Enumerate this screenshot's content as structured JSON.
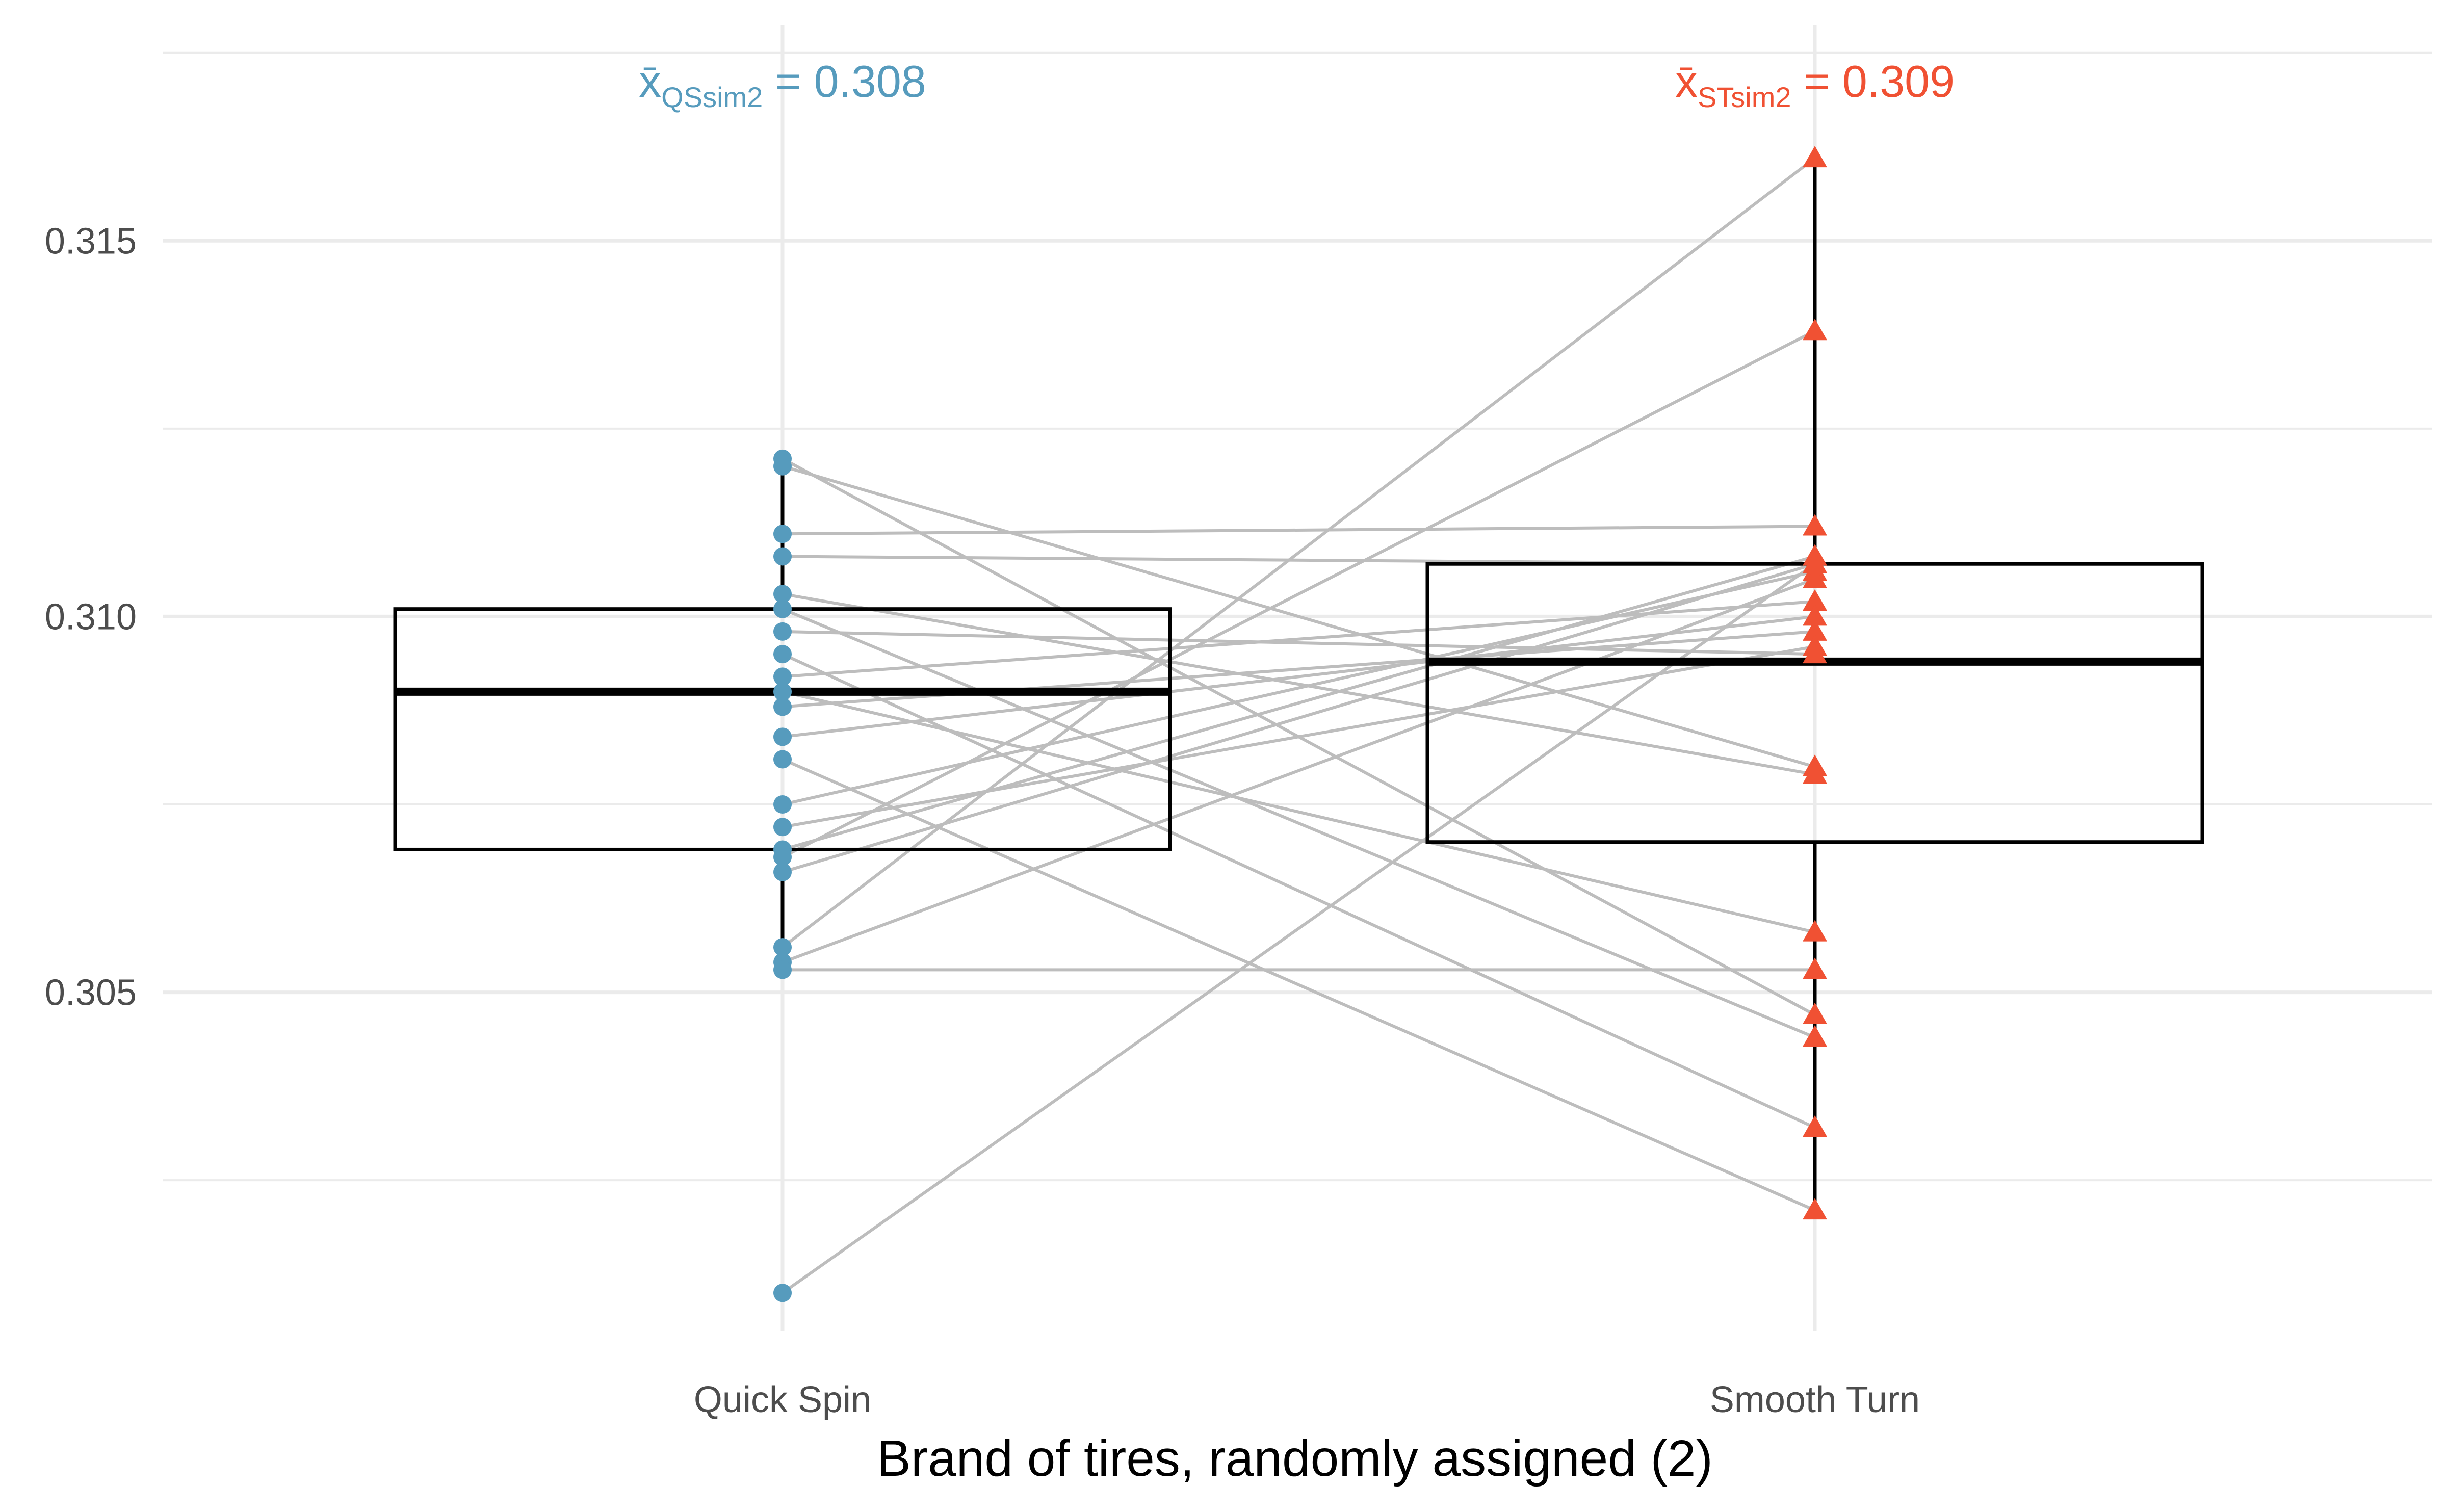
{
  "chart_data": {
    "type": "boxplot-paired",
    "title": "",
    "xlabel": "Brand of tires, randomly assigned (2)",
    "ylabel": "",
    "categories": [
      "Quick Spin",
      "Smooth Turn"
    ],
    "ylim": [
      0.3005,
      0.318
    ],
    "yticks": [
      0.305,
      0.31,
      0.315
    ],
    "ytick_labels": [
      "0.305",
      "0.310",
      "0.315"
    ],
    "grid": true,
    "colors": {
      "quick_spin": "#569bbd",
      "smooth_turn": "#f05133",
      "pair_line": "#bdbdbd",
      "box": "#000000"
    },
    "markers": {
      "quick_spin": "circle",
      "smooth_turn": "triangle"
    },
    "annotations": [
      {
        "symbol": "x̄",
        "subscript": "QSsim2",
        "text": " = 0.308",
        "category": "Quick Spin"
      },
      {
        "symbol": "x̄",
        "subscript": "STsim2",
        "text": " = 0.309",
        "category": "Smooth Turn"
      }
    ],
    "boxes": [
      {
        "category": "Quick Spin",
        "q1": 0.3069,
        "median": 0.309,
        "q3": 0.3101,
        "whisker_low": 0.3052,
        "whisker_high": 0.3121
      },
      {
        "category": "Smooth Turn",
        "q1": 0.307,
        "median": 0.3094,
        "q3": 0.3107,
        "whisker_low": 0.3021,
        "whisker_high": 0.3161
      }
    ],
    "series": [
      {
        "name": "Quick Spin",
        "values": [
          0.3121,
          0.312,
          0.3111,
          0.3108,
          0.3103,
          0.3101,
          0.3098,
          0.3095,
          0.3092,
          0.309,
          0.3088,
          0.3084,
          0.3081,
          0.3075,
          0.3072,
          0.3069,
          0.3068,
          0.3066,
          0.3056,
          0.3054,
          0.3053,
          0.301
        ]
      },
      {
        "name": "Smooth Turn",
        "values": [
          0.3047,
          0.308,
          0.3112,
          0.3107,
          0.3079,
          0.3044,
          0.3095,
          0.3032,
          0.3102,
          0.3058,
          0.3098,
          0.31,
          0.3021,
          0.3106,
          0.3096,
          0.3108,
          0.3138,
          0.3107,
          0.3161,
          0.3105,
          0.3053,
          0.3107
        ]
      }
    ]
  }
}
